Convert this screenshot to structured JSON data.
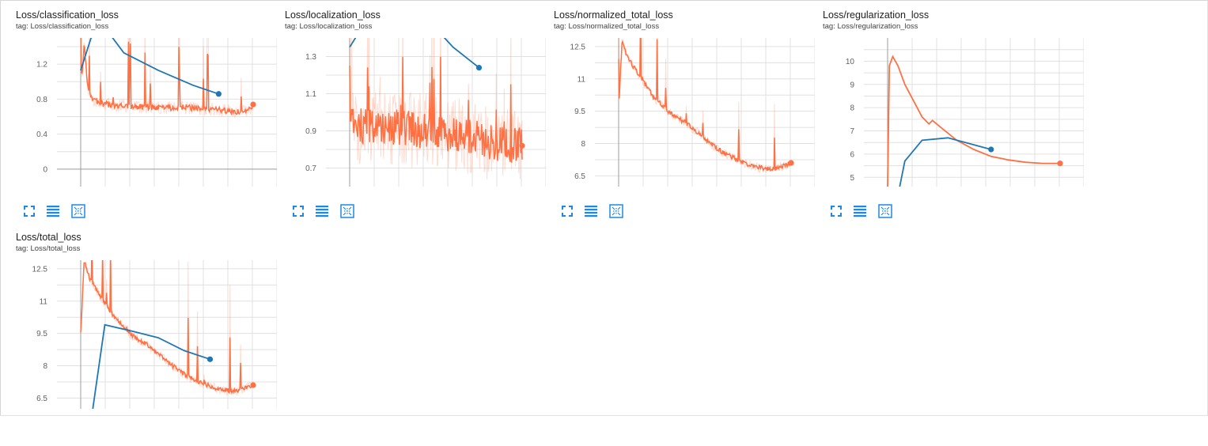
{
  "icons": {
    "fullscreen": "fullscreen-icon",
    "data_table": "data-table-icon",
    "fit_domain": "fit-domain-icon"
  },
  "colors": {
    "train": "#ff7043",
    "eval": "#1f77b4",
    "grid": "#e0e0e0",
    "axis": "#9e9e9e",
    "icon": "#1e88e5"
  },
  "chart_data": [
    {
      "type": "line",
      "title": "Loss/classification_loss",
      "subtitle": "tag: Loss/classification_loss",
      "ylim": [
        -0.2,
        1.5
      ],
      "yticks": [
        0,
        0.4,
        0.8,
        1.2
      ],
      "ytick_labels": [
        "0",
        "0.4",
        "0.8",
        "1.2"
      ],
      "xlim": [
        0,
        1
      ],
      "grid": true,
      "series": [
        {
          "values_x": [
            0.0,
            0.01,
            0.02,
            0.04,
            0.06,
            0.1,
            0.15,
            0.2,
            0.3,
            0.4,
            0.5,
            0.6,
            0.7,
            0.8,
            0.9,
            0.95,
            0.98,
            1.0
          ],
          "values_y": [
            1.2,
            1.05,
            1.45,
            0.95,
            0.82,
            0.76,
            0.74,
            0.73,
            0.72,
            0.71,
            0.7,
            0.71,
            0.69,
            0.68,
            0.66,
            0.66,
            0.68,
            0.74
          ],
          "noise": 0.05
        },
        {
          "values_x": [
            0.0,
            0.06,
            0.14,
            0.25,
            0.45,
            0.65,
            0.8
          ],
          "values_y": [
            1.13,
            1.5,
            1.62,
            1.33,
            1.13,
            0.96,
            0.86
          ]
        }
      ]
    },
    {
      "type": "line",
      "title": "Loss/localization_loss",
      "subtitle": "tag: Loss/localization_loss",
      "ylim": [
        0.6,
        1.4
      ],
      "yticks": [
        0.7,
        0.9,
        1.1,
        1.3
      ],
      "ytick_labels": [
        "0.7",
        "0.9",
        "1.1",
        "1.3"
      ],
      "xlim": [
        0,
        1
      ],
      "grid": true,
      "series": [
        {
          "values_x": [
            0.0,
            0.1,
            0.2,
            0.3,
            0.4,
            0.5,
            0.6,
            0.7,
            0.8,
            0.9,
            1.0
          ],
          "values_y": [
            0.92,
            0.93,
            0.91,
            0.92,
            0.9,
            0.9,
            0.88,
            0.87,
            0.84,
            0.83,
            0.82
          ],
          "noise": 0.14
        },
        {
          "values_x": [
            0.0,
            0.1,
            0.3,
            0.5,
            0.6,
            0.75
          ],
          "values_y": [
            1.35,
            1.5,
            1.55,
            1.45,
            1.35,
            1.24
          ]
        }
      ]
    },
    {
      "type": "line",
      "title": "Loss/normalized_total_loss",
      "subtitle": "tag: Loss/normalized_total_loss",
      "ylim": [
        6.0,
        12.9
      ],
      "yticks": [
        6.5,
        8,
        9.5,
        11,
        12.5
      ],
      "ytick_labels": [
        "6.5",
        "8",
        "9.5",
        "11",
        "12.5"
      ],
      "xlim": [
        0,
        1
      ],
      "grid": true,
      "series": [
        {
          "values_x": [
            0.0,
            0.02,
            0.05,
            0.1,
            0.2,
            0.3,
            0.4,
            0.5,
            0.6,
            0.7,
            0.8,
            0.9,
            1.0
          ],
          "values_y": [
            9.5,
            12.8,
            12.0,
            11.4,
            10.2,
            9.4,
            8.9,
            8.2,
            7.6,
            7.2,
            6.9,
            6.8,
            7.1
          ],
          "noise": 0.15
        }
      ]
    },
    {
      "type": "line",
      "title": "Loss/regularization_loss",
      "subtitle": "tag: Loss/regularization_loss",
      "ylim": [
        4.6,
        11.0
      ],
      "yticks": [
        5,
        6,
        7,
        8,
        9,
        10
      ],
      "ytick_labels": [
        "5",
        "6",
        "7",
        "8",
        "9",
        "10"
      ],
      "xlim": [
        0,
        1
      ],
      "grid": true,
      "series": [
        {
          "values_x": [
            0.0,
            0.01,
            0.03,
            0.06,
            0.1,
            0.15,
            0.2,
            0.24,
            0.26,
            0.3,
            0.4,
            0.5,
            0.6,
            0.7,
            0.8,
            0.9,
            1.0
          ],
          "values_y": [
            4.6,
            9.8,
            10.2,
            9.8,
            9.0,
            8.3,
            7.6,
            7.3,
            7.45,
            7.2,
            6.6,
            6.2,
            5.9,
            5.75,
            5.65,
            5.6,
            5.6
          ]
        },
        {
          "values_x": [
            0.07,
            0.1,
            0.2,
            0.35,
            0.6
          ],
          "values_y": [
            4.6,
            5.7,
            6.6,
            6.7,
            6.2
          ]
        }
      ]
    },
    {
      "type": "line",
      "title": "Loss/total_loss",
      "subtitle": "tag: Loss/total_loss",
      "ylim": [
        6.0,
        12.9
      ],
      "yticks": [
        6.5,
        8,
        9.5,
        11,
        12.5
      ],
      "ytick_labels": [
        "6.5",
        "8",
        "9.5",
        "11",
        "12.5"
      ],
      "xlim": [
        0,
        1
      ],
      "grid": true,
      "series": [
        {
          "values_x": [
            0.0,
            0.02,
            0.05,
            0.1,
            0.2,
            0.3,
            0.4,
            0.5,
            0.6,
            0.7,
            0.8,
            0.9,
            1.0
          ],
          "values_y": [
            9.3,
            12.9,
            12.1,
            11.4,
            10.2,
            9.4,
            8.9,
            8.2,
            7.6,
            7.2,
            6.9,
            6.8,
            7.1
          ],
          "noise": 0.15
        },
        {
          "values_x": [
            0.07,
            0.14,
            0.3,
            0.45,
            0.6,
            0.75
          ],
          "values_y": [
            6.0,
            9.9,
            9.6,
            9.3,
            8.7,
            8.3
          ]
        }
      ]
    }
  ]
}
